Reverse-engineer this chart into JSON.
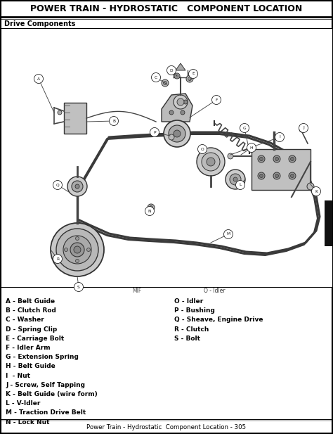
{
  "title": "POWER TRAIN - HYDROSTATIC   COMPONENT LOCATION",
  "subtitle": "Drive Components",
  "footer": "Power Train - Hydrostatic  Component Location - 305",
  "mid_label_left": "MIF",
  "mid_label_right": "O - Idler",
  "legend_left": [
    "A - Belt Guide",
    "B - Clutch Rod",
    "C - Washer",
    "D - Spring Clip",
    "E - Carriage Bolt",
    "F - Idler Arm",
    "G - Extension Spring",
    "H - Belt Guide",
    "I  - Nut",
    "J - Screw, Self Tapping",
    "K - Belt Guide (wire form)",
    "L - V-Idler",
    "M - Traction Drive Belt",
    "N - Lock Nut"
  ],
  "legend_right": [
    "O - Idler",
    "P - Bushing",
    "Q - Sheave, Engine Drive",
    "R - Clutch",
    "S - Bolt"
  ],
  "bg_color": "#ffffff",
  "border_color": "#000000",
  "text_color": "#000000",
  "page_width": 4.74,
  "page_height": 6.17,
  "title_fontsize": 9.0,
  "subtitle_fontsize": 7.0,
  "legend_fontsize": 6.5,
  "footer_fontsize": 6.2,
  "mid_label_fontsize": 5.5
}
